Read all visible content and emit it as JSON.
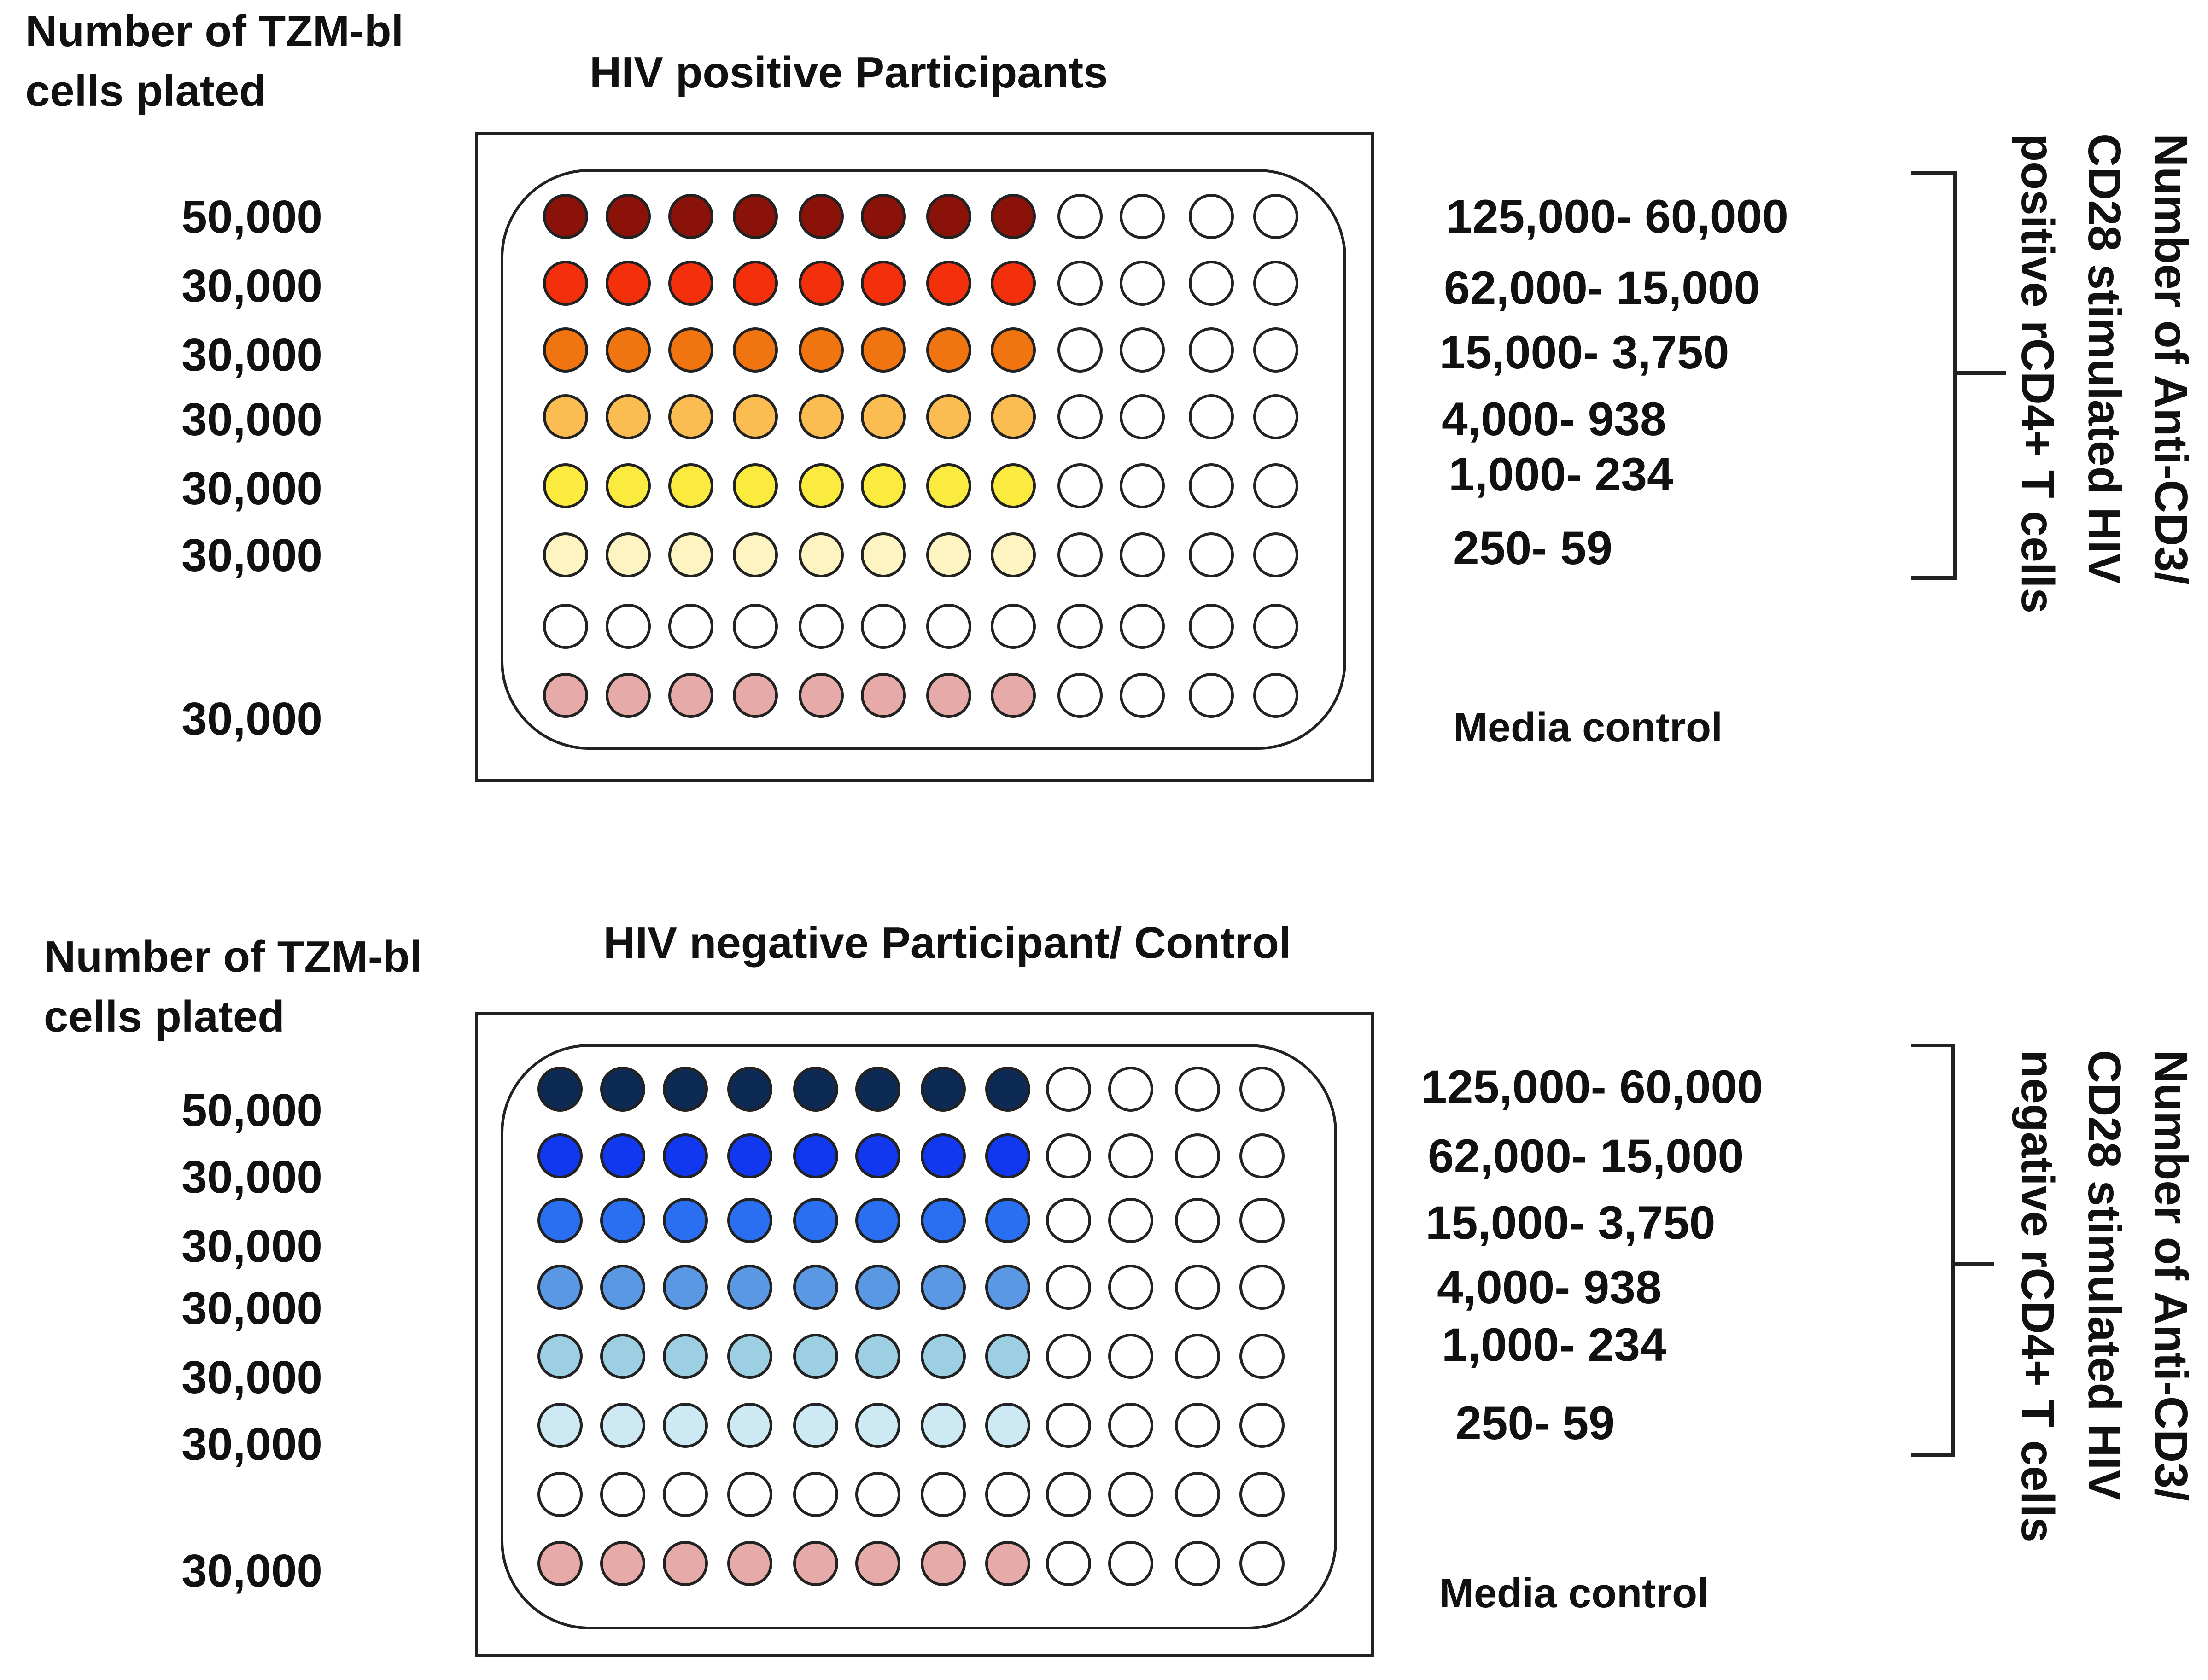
{
  "plates": [
    {
      "id": "positive",
      "title": "HIV positive Participants",
      "left_heading": [
        "Number of TZM-bl",
        "cells plated"
      ],
      "row_counts": [
        "50,000",
        "30,000",
        "30,000",
        "30,000",
        "30,000",
        "30,000",
        "",
        "30,000"
      ],
      "row_labels": [
        "125,000- 60,000",
        "62,000- 15,000",
        "15,000- 3,750",
        "4,000- 938",
        "1,000- 234",
        "250- 59",
        "",
        "Media control"
      ],
      "bracket_label": [
        "Number of Anti-CD3/",
        "CD28 stimulated HIV",
        "positive  rCD4+ T cells"
      ],
      "row_colors": [
        "#8b1208",
        "#f4300c",
        "#f07410",
        "#fbbc52",
        "#fbeb3e",
        "#fdf4c2",
        "#ffffff",
        "#e6aaa8"
      ],
      "filled_columns": 8,
      "total_columns": 12
    },
    {
      "id": "negative",
      "title": "HIV negative Participant/ Control",
      "left_heading": [
        "Number of TZM-bl",
        "cells plated"
      ],
      "row_counts": [
        "50,000",
        "30,000",
        "30,000",
        "30,000",
        "30,000",
        "30,000",
        "",
        "30,000"
      ],
      "row_labels": [
        "125,000- 60,000",
        "62,000- 15,000",
        "15,000- 3,750",
        "4,000- 938",
        "1,000- 234",
        "250- 59",
        "",
        "Media control"
      ],
      "bracket_label": [
        "Number of Anti-CD3/",
        "CD28 stimulated HIV",
        "negative rCD4+ T cells"
      ],
      "row_colors": [
        "#0d2a55",
        "#1138ee",
        "#2a6ff2",
        "#5a98e4",
        "#9ccfe2",
        "#cde9f3",
        "#ffffff",
        "#e6aaa8"
      ],
      "filled_columns": 8,
      "total_columns": 12
    }
  ]
}
